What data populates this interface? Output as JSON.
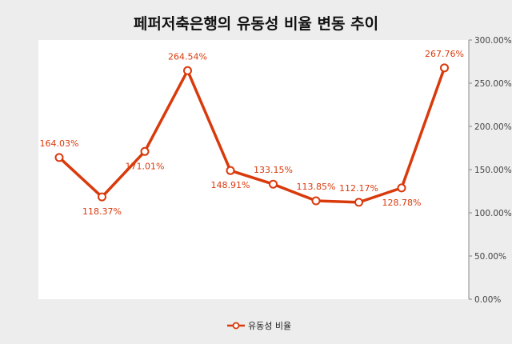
{
  "colors": {
    "series": "#d93a0c",
    "background": "#ededed",
    "plot_background": "#ffffff",
    "axis": "#888888",
    "title": "#111111"
  },
  "chart_data": {
    "type": "line",
    "title": "페퍼저축은행의 유동성 비율 변동 추이",
    "xlabel": "",
    "ylabel": "",
    "x": [
      1,
      2,
      3,
      4,
      5,
      6,
      7,
      8,
      9,
      10
    ],
    "series": [
      {
        "name": "유동성 비율",
        "values": [
          164.03,
          118.37,
          171.01,
          264.54,
          148.91,
          133.15,
          113.85,
          112.17,
          128.78,
          267.76
        ],
        "labels": [
          "164.03%",
          "118.37%",
          "171.01%",
          "264.54%",
          "148.91%",
          "133.15%",
          "113.85%",
          "112.17%",
          "128.78%",
          "267.76%"
        ],
        "label_positions": [
          "above",
          "below",
          "below",
          "above",
          "below",
          "above",
          "above",
          "above",
          "below",
          "above"
        ]
      }
    ],
    "ylim": [
      0,
      300
    ],
    "yticks": [
      0,
      50,
      100,
      150,
      200,
      250,
      300
    ],
    "ytick_labels": [
      "0.00%",
      "50.00%",
      "100.00%",
      "150.00%",
      "200.00%",
      "250.00%",
      "300.00%"
    ],
    "y_axis_side": "right",
    "grid": false,
    "legend": "bottom-center"
  }
}
